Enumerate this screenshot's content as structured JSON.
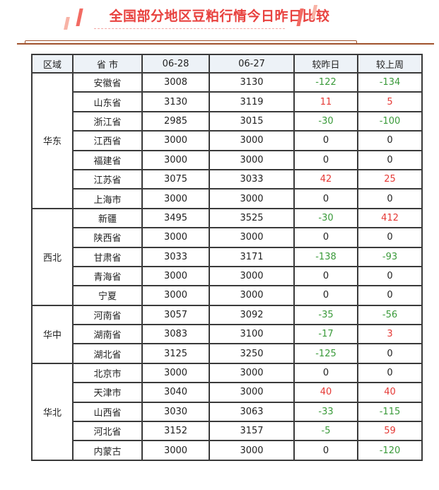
{
  "title": "全国部分地区豆粕行情今日昨日比较",
  "colors": {
    "title": "#e8423f",
    "up": "#e53935",
    "down": "#3a9a3a",
    "header_bg": "#edf2f7"
  },
  "headers": [
    "区域",
    "省 市",
    "06-28",
    "06-27",
    "较昨日",
    "较上周"
  ],
  "groups": [
    {
      "region": "华东",
      "rows": [
        [
          "安徽省",
          "3008",
          "3130",
          "-122",
          "-134"
        ],
        [
          "山东省",
          "3130",
          "3119",
          "11",
          "5"
        ],
        [
          "浙江省",
          "2985",
          "3015",
          "-30",
          "-100"
        ],
        [
          "江西省",
          "3000",
          "3000",
          "0",
          "0"
        ],
        [
          "福建省",
          "3000",
          "3000",
          "0",
          "0"
        ],
        [
          "江苏省",
          "3075",
          "3033",
          "42",
          "25"
        ],
        [
          "上海市",
          "3000",
          "3000",
          "0",
          "0"
        ]
      ]
    },
    {
      "region": "西北",
      "rows": [
        [
          "新疆",
          "3495",
          "3525",
          "-30",
          "412"
        ],
        [
          "陕西省",
          "3000",
          "3000",
          "0",
          "0"
        ],
        [
          "甘肃省",
          "3033",
          "3171",
          "-138",
          "-93"
        ],
        [
          "青海省",
          "3000",
          "3000",
          "0",
          "0"
        ],
        [
          "宁夏",
          "3000",
          "3000",
          "0",
          "0"
        ]
      ]
    },
    {
      "region": "华中",
      "rows": [
        [
          "河南省",
          "3057",
          "3092",
          "-35",
          "-56"
        ],
        [
          "湖南省",
          "3083",
          "3100",
          "-17",
          "3"
        ],
        [
          "湖北省",
          "3125",
          "3250",
          "-125",
          "0"
        ]
      ]
    },
    {
      "region": "华北",
      "rows": [
        [
          "北京市",
          "3000",
          "3000",
          "0",
          "0"
        ],
        [
          "天津市",
          "3040",
          "3000",
          "40",
          "40"
        ],
        [
          "山西省",
          "3030",
          "3063",
          "-33",
          "-115"
        ],
        [
          "河北省",
          "3152",
          "3157",
          "-5",
          "59"
        ],
        [
          "内蒙古",
          "3000",
          "3000",
          "0",
          "-120"
        ]
      ]
    }
  ]
}
